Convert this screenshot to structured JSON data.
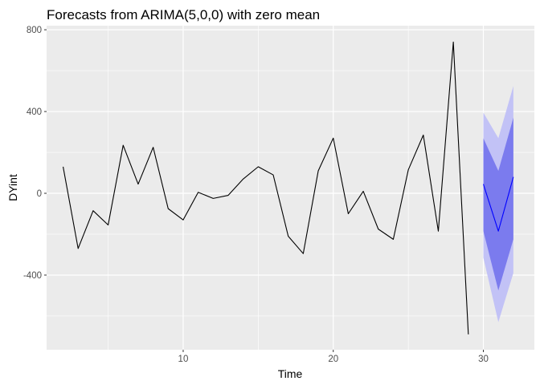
{
  "chart_data": {
    "type": "line",
    "title": "Forecasts from ARIMA(5,0,0) with zero mean",
    "xlabel": "Time",
    "ylabel": "DYint",
    "xlim": [
      0.9,
      33.4
    ],
    "ylim": [
      -765,
      820
    ],
    "x_ticks": [
      10,
      20,
      30
    ],
    "y_ticks": [
      -400,
      0,
      400,
      800
    ],
    "x_tick_labels": [
      "10",
      "20",
      "30"
    ],
    "y_tick_labels": [
      "-400",
      "0",
      "400",
      "800"
    ],
    "grid": true,
    "legend": "none",
    "series": [
      {
        "role": "observed",
        "color": "#000000",
        "x": [
          2,
          3,
          4,
          5,
          6,
          7,
          8,
          9,
          10,
          11,
          12,
          13,
          14,
          15,
          16,
          17,
          18,
          19,
          20,
          21,
          22,
          23,
          24,
          25,
          26,
          27,
          28,
          29
        ],
        "y": [
          130,
          -270,
          -85,
          -155,
          235,
          45,
          225,
          -75,
          -130,
          5,
          -25,
          -10,
          70,
          130,
          90,
          -210,
          -295,
          110,
          270,
          -100,
          10,
          -175,
          -225,
          115,
          285,
          -185,
          740,
          -690
        ]
      },
      {
        "role": "forecast",
        "color": "#0000ff",
        "x": [
          30,
          31,
          32
        ],
        "y": [
          45,
          -185,
          80
        ],
        "lower80": [
          -185,
          -475,
          -225
        ],
        "upper80": [
          270,
          110,
          370
        ],
        "lower95": [
          -315,
          -630,
          -390
        ],
        "upper95": [
          395,
          270,
          525
        ]
      }
    ],
    "colors": {
      "panel_bg": "#ebebeb",
      "grid": "#ffffff",
      "band80": "#7b7bee",
      "band95": "#c2c2f6"
    }
  }
}
